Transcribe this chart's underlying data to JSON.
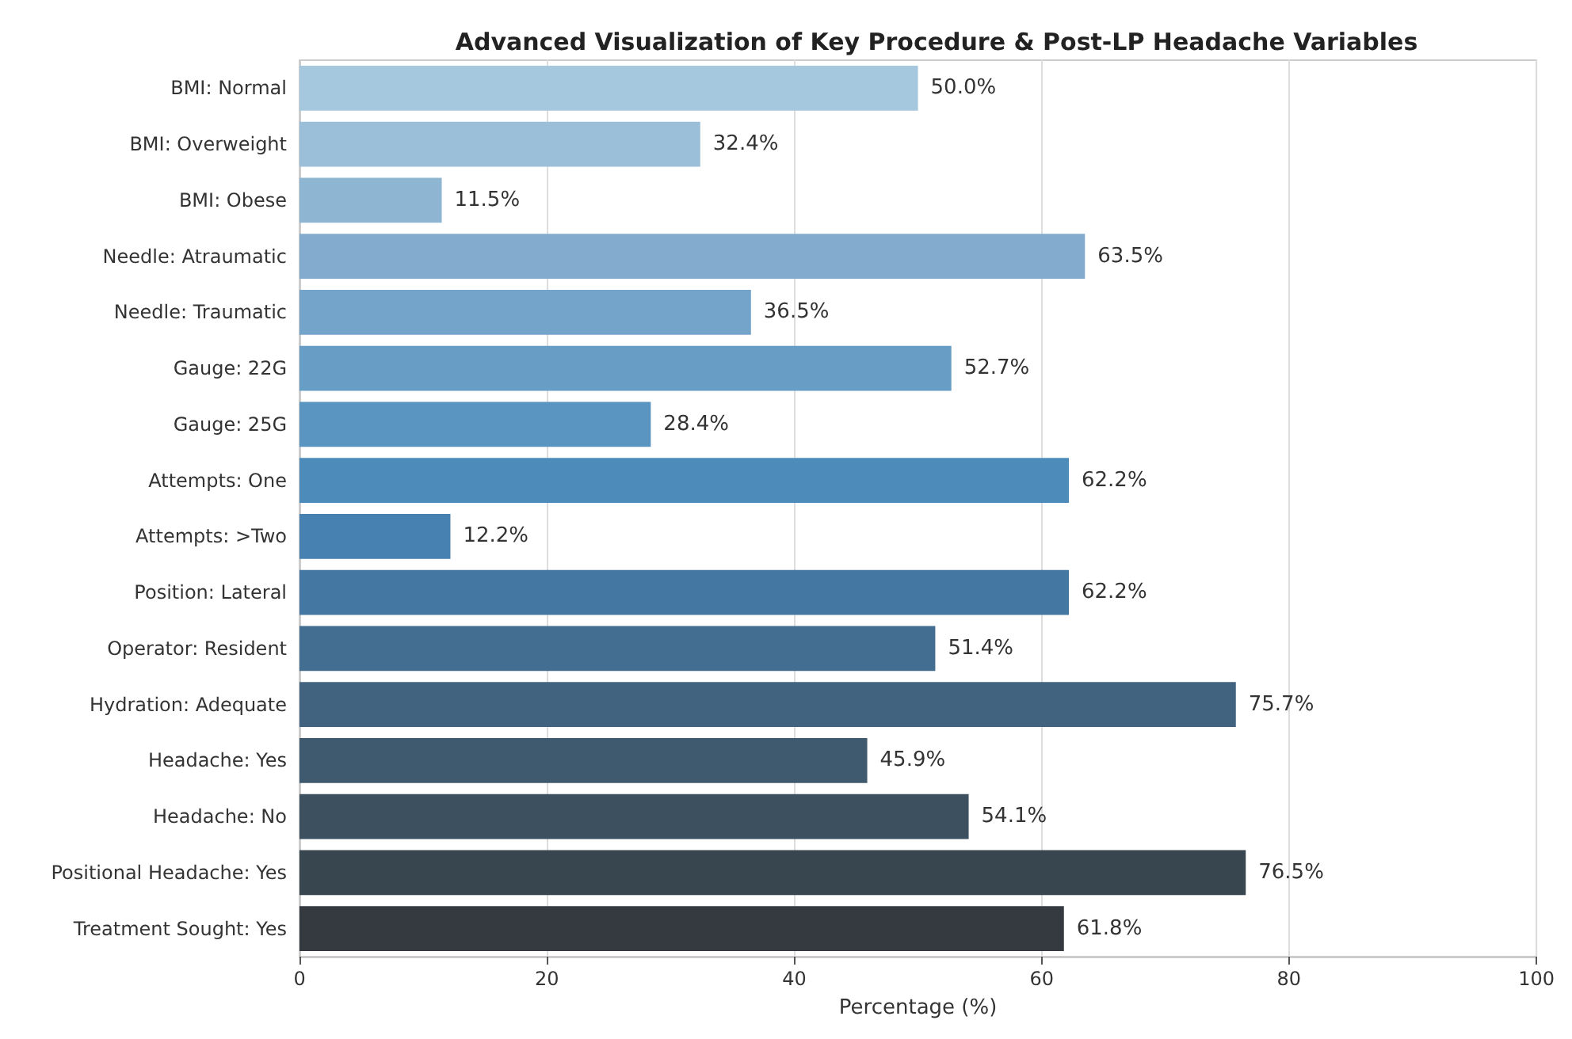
{
  "chart_data": {
    "type": "bar",
    "orientation": "horizontal",
    "title": "Advanced Visualization of Key Procedure & Post-LP Headache Variables",
    "xlabel": "Percentage (%)",
    "categories": [
      "BMI: Normal",
      "BMI: Overweight",
      "BMI: Obese",
      "Needle: Atraumatic",
      "Needle: Traumatic",
      "Gauge: 22G",
      "Gauge: 25G",
      "Attempts: One",
      "Attempts: >Two",
      "Position: Lateral",
      "Operator: Resident",
      "Hydration: Adequate",
      "Headache: Yes",
      "Headache: No",
      "Positional Headache: Yes",
      "Treatment Sought: Yes"
    ],
    "values": [
      50.0,
      32.4,
      11.5,
      63.5,
      36.5,
      52.7,
      28.4,
      62.2,
      12.2,
      62.2,
      51.4,
      75.7,
      45.9,
      54.1,
      76.5,
      61.8
    ],
    "value_labels": [
      "50.0%",
      "32.4%",
      "11.5%",
      "63.5%",
      "36.5%",
      "52.7%",
      "28.4%",
      "62.2%",
      "12.2%",
      "62.2%",
      "51.4%",
      "75.7%",
      "45.9%",
      "54.1%",
      "76.5%",
      "61.8%"
    ],
    "colors": [
      "#a6c8df",
      "#9bbfd8",
      "#8eb6d2",
      "#82abcd",
      "#75a4cb",
      "#689dc5",
      "#5a94c0",
      "#4c8bba",
      "#4681b2",
      "#4478a3",
      "#436d91",
      "#41637f",
      "#3f5a6f",
      "#3d5060",
      "#384650",
      "#343a40"
    ],
    "xlim": [
      0,
      100
    ],
    "xticks": [
      0,
      20,
      40,
      60,
      80,
      100
    ],
    "grid": "x"
  }
}
